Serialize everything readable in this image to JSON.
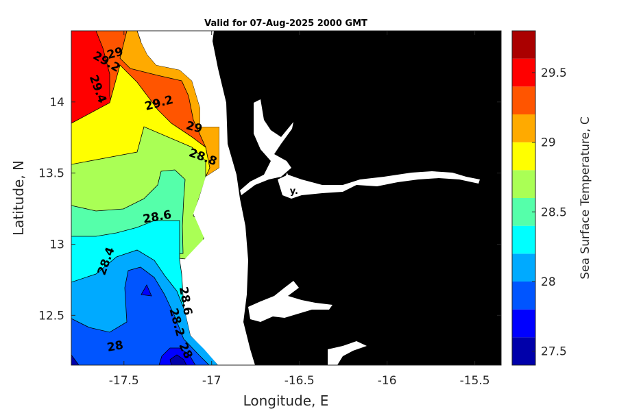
{
  "title": "Valid for 07-Aug-2025 2000 GMT",
  "chart_data": {
    "type": "contour-map",
    "xlabel": "Longitude, E",
    "ylabel": "Latitude, N",
    "xlim": [
      -17.8,
      -15.35
    ],
    "ylim": [
      12.15,
      14.5
    ],
    "xticks": [
      -17.5,
      -17,
      -16.5,
      -16,
      -15.5
    ],
    "xtick_labels": [
      "-17.5",
      "-17",
      "-16.5",
      "-16",
      "-15.5"
    ],
    "yticks": [
      12.5,
      13,
      13.5,
      14
    ],
    "ytick_labels": [
      "12.5",
      "13",
      "13.5",
      "14"
    ],
    "colorbar": {
      "label": "Sea Surface Temperature, C",
      "range": [
        27.4,
        29.8
      ],
      "step": 0.2,
      "ticks": [
        27.5,
        28,
        28.5,
        29,
        29.5
      ],
      "tick_labels": [
        "27.5",
        "28",
        "28.5",
        "29",
        "29.5"
      ],
      "colors": [
        "#0000aa",
        "#0000ff",
        "#0055ff",
        "#00aaff",
        "#00ffff",
        "#55ffaa",
        "#aaff55",
        "#ffff00",
        "#ffaa00",
        "#ff5500",
        "#ff0000",
        "#aa0000"
      ]
    },
    "contour_labels": [
      {
        "text": "29",
        "lon": -17.55,
        "lat": 14.34
      },
      {
        "text": "29.2",
        "lon": -17.6,
        "lat": 14.28
      },
      {
        "text": "29.4",
        "lon": -17.65,
        "lat": 14.09
      },
      {
        "text": "29.2",
        "lon": -17.3,
        "lat": 13.99
      },
      {
        "text": "29",
        "lon": -17.1,
        "lat": 13.82
      },
      {
        "text": "28.8",
        "lon": -17.05,
        "lat": 13.61
      },
      {
        "text": "28.6",
        "lon": -17.31,
        "lat": 13.19
      },
      {
        "text": "28.4",
        "lon": -17.6,
        "lat": 12.88
      },
      {
        "text": "28.6",
        "lon": -17.15,
        "lat": 12.6
      },
      {
        "text": "28.2",
        "lon": -17.2,
        "lat": 12.45
      },
      {
        "text": "28",
        "lon": -17.15,
        "lat": 12.25
      },
      {
        "text": "28",
        "lon": -17.55,
        "lat": 12.28
      }
    ],
    "marker": {
      "symbol": "star",
      "label": "y.",
      "lon": -16.57,
      "lat": 13.45
    }
  }
}
